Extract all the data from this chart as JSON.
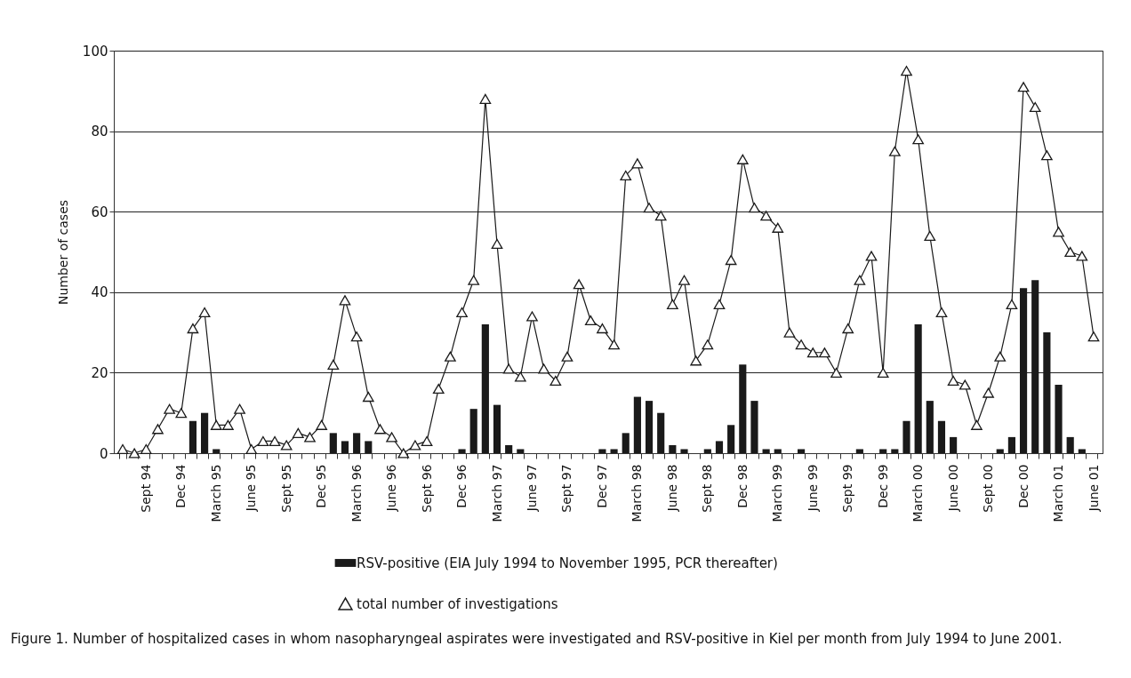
{
  "chart_data": {
    "type": "bar",
    "ylabel": "Number of cases",
    "categories": [
      null,
      null,
      "Sept 94",
      null,
      null,
      "Dec 94",
      null,
      null,
      "March 95",
      null,
      null,
      "June 95",
      null,
      null,
      "Sept 95",
      null,
      null,
      "Dec 95",
      null,
      null,
      "March 96",
      null,
      null,
      "June 96",
      null,
      null,
      "Sept 96",
      null,
      null,
      "Dec 96",
      null,
      null,
      "March 97",
      null,
      null,
      "June 97",
      null,
      null,
      "Sept 97",
      null,
      null,
      "Dec 97",
      null,
      null,
      "March 98",
      null,
      null,
      "June 98",
      null,
      null,
      "Sept 98",
      null,
      null,
      "Dec 98",
      null,
      null,
      "March 99",
      null,
      null,
      "June 99",
      null,
      null,
      "Sept 99",
      null,
      null,
      "Dec 99",
      null,
      null,
      "March 00",
      null,
      null,
      "June 00",
      null,
      null,
      "Sept 00",
      null,
      null,
      "Dec 00",
      null,
      null,
      "March 01",
      null,
      null,
      "June 01"
    ],
    "series": [
      {
        "name": "RSV-positive (EIA July 1994 to November 1995, PCR thereafter)",
        "color": "#1a1a1a",
        "values": [
          0,
          0,
          0,
          0,
          0,
          0,
          8,
          10,
          1,
          0,
          0,
          0,
          0,
          0,
          0,
          0,
          0,
          0,
          5,
          3,
          5,
          3,
          0,
          0,
          0,
          0,
          0,
          0,
          0,
          1,
          11,
          32,
          12,
          2,
          1,
          0,
          0,
          0,
          0,
          0,
          0,
          1,
          1,
          5,
          14,
          13,
          10,
          2,
          1,
          0,
          1,
          3,
          7,
          22,
          13,
          1,
          1,
          0,
          1,
          0,
          0,
          0,
          0,
          1,
          0,
          1,
          1,
          8,
          32,
          13,
          8,
          4,
          0,
          0,
          0,
          1,
          4,
          41,
          43,
          30,
          17,
          4,
          1,
          0
        ]
      },
      {
        "name": "total number of investigations",
        "type": "line",
        "color": "#1a1a1a",
        "values": [
          1,
          0,
          1,
          6,
          11,
          10,
          31,
          35,
          7,
          7,
          11,
          1,
          3,
          3,
          2,
          5,
          4,
          7,
          22,
          38,
          29,
          14,
          6,
          4,
          0,
          2,
          3,
          16,
          24,
          35,
          43,
          88,
          52,
          21,
          19,
          34,
          21,
          18,
          24,
          42,
          33,
          31,
          27,
          69,
          72,
          61,
          59,
          37,
          43,
          23,
          27,
          37,
          48,
          73,
          61,
          59,
          56,
          30,
          27,
          25,
          25,
          20,
          31,
          43,
          49,
          20,
          75,
          95,
          78,
          54,
          35,
          18,
          17,
          7,
          15,
          24,
          37,
          91,
          86,
          74,
          55,
          50,
          49,
          29
        ]
      }
    ],
    "ylim": [
      0,
      100
    ],
    "yticks": [
      0,
      20,
      40,
      60,
      80,
      100
    ],
    "grid": "y",
    "legend": "bottom",
    "marker": "triangle",
    "line_style": "solid",
    "annotations": [
      "Figure 1. Number of hospitalized cases in whom nasopharyngeal aspirates were investigated and RSV-positive in Kiel per month from July 1994 to June 2001."
    ]
  }
}
